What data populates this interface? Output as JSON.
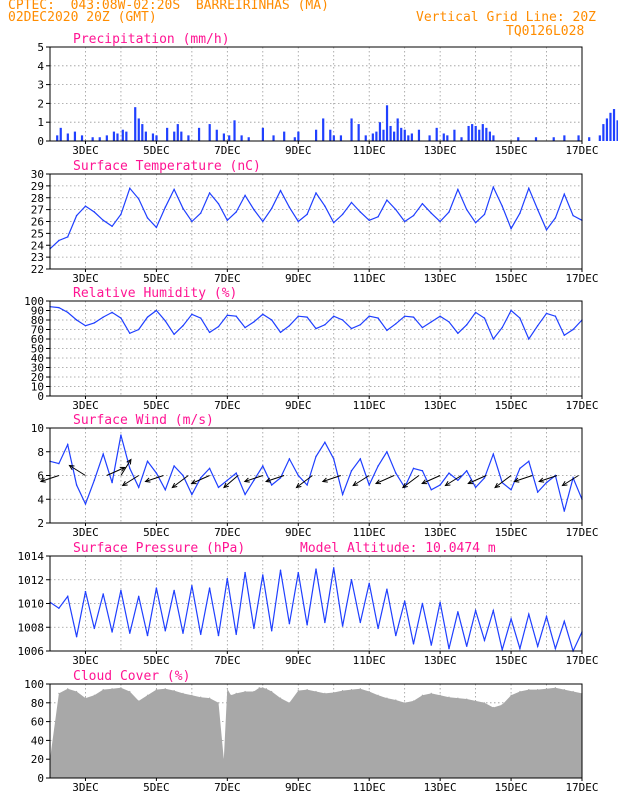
{
  "header": {
    "line1": "CPTEC:  043:08W-02:20S  BARREIRINHAS (MA)",
    "line2": "02DEC2020 20Z (GMT)",
    "right1": "Vertical Grid Line: 20Z",
    "right2": "TQ0126L028"
  },
  "colors": {
    "header": "#ff8c00",
    "title": "#ff1493",
    "line": "#1f3fff",
    "bars": "#2040ff",
    "cloud": "#a8a8a8"
  },
  "chart_data": [
    {
      "type": "bar",
      "title": "Precipitation (mm/h)",
      "ylim": [
        0,
        5
      ],
      "yticks": [
        0,
        1,
        2,
        3,
        4,
        5
      ],
      "x_range_days": [
        0,
        15
      ],
      "xtick_labels": [
        "3DEC",
        "5DEC",
        "7DEC",
        "9DEC",
        "11DEC",
        "13DEC",
        "15DEC",
        "17DEC"
      ],
      "series": [
        {
          "x": [
            0.2,
            0.3,
            0.5,
            0.7,
            0.9,
            1.2,
            1.4,
            1.6,
            1.8,
            1.9,
            2.05,
            2.15,
            2.4,
            2.5,
            2.6,
            2.7,
            2.9,
            3.0,
            3.3,
            3.5,
            3.6,
            3.7,
            3.9,
            4.2,
            4.5,
            4.7,
            4.9,
            5.05,
            5.2,
            5.4,
            5.6,
            6.0,
            6.3,
            6.6,
            6.9,
            7.0,
            7.5,
            7.7,
            7.9,
            8.0,
            8.2,
            8.5,
            8.7,
            8.9,
            9.1,
            9.2,
            9.3,
            9.4,
            9.5,
            9.6,
            9.7,
            9.8,
            9.9,
            10.0,
            10.1,
            10.2,
            10.4,
            10.7,
            10.9,
            11.1,
            11.2,
            11.4,
            11.6,
            11.8,
            11.9,
            12.0,
            12.1,
            12.2,
            12.3,
            12.4,
            12.5,
            13.2,
            13.7,
            14.2,
            14.5,
            14.9,
            15.2,
            15.5,
            15.6,
            15.7,
            15.8,
            15.9,
            16.0,
            16.1,
            16.2,
            16.3,
            16.4,
            16.5
          ],
          "values": [
            0.3,
            0.7,
            0.4,
            0.5,
            0.3,
            0.2,
            0.2,
            0.3,
            0.5,
            0.4,
            0.6,
            0.5,
            1.8,
            1.2,
            0.9,
            0.5,
            0.4,
            0.3,
            0.7,
            0.5,
            0.9,
            0.5,
            0.3,
            0.7,
            0.9,
            0.6,
            0.4,
            0.3,
            1.1,
            0.3,
            0.2,
            0.7,
            0.3,
            0.5,
            0.2,
            0.5,
            0.6,
            1.2,
            0.6,
            0.3,
            0.3,
            1.2,
            0.9,
            0.3,
            0.4,
            0.5,
            1.0,
            0.6,
            1.9,
            0.8,
            0.5,
            1.2,
            0.7,
            0.6,
            0.3,
            0.4,
            0.6,
            0.3,
            0.7,
            0.4,
            0.3,
            0.6,
            0.2,
            0.8,
            0.9,
            0.8,
            0.6,
            0.9,
            0.7,
            0.5,
            0.3,
            0.2,
            0.2,
            0.2,
            0.3,
            0.3,
            0.2,
            0.3,
            0.9,
            1.2,
            1.5,
            1.7,
            1.1,
            0.8,
            0.6,
            0.4,
            0.3,
            0.2
          ]
        }
      ]
    },
    {
      "type": "line",
      "title": "Surface Temperature (nC)",
      "ylim": [
        22,
        30
      ],
      "yticks": [
        22,
        23,
        24,
        25,
        26,
        27,
        28,
        29,
        30
      ],
      "x_range_days": [
        0,
        15
      ],
      "xtick_labels": [
        "3DEC",
        "5DEC",
        "7DEC",
        "9DEC",
        "11DEC",
        "13DEC",
        "15DEC",
        "17DEC"
      ],
      "series": [
        {
          "x": [
            0,
            0.25,
            0.5,
            0.75,
            1.0,
            1.25,
            1.5,
            1.75,
            2.0,
            2.25,
            2.5,
            2.75,
            3.0,
            3.25,
            3.5,
            3.75,
            4.0,
            4.25,
            4.5,
            4.75,
            5.0,
            5.25,
            5.5,
            5.75,
            6.0,
            6.25,
            6.5,
            6.75,
            7.0,
            7.25,
            7.5,
            7.75,
            8.0,
            8.25,
            8.5,
            8.75,
            9.0,
            9.25,
            9.5,
            9.75,
            10.0,
            10.25,
            10.5,
            10.75,
            11.0,
            11.25,
            11.5,
            11.75,
            12.0,
            12.25,
            12.5,
            12.75,
            13.0,
            13.25,
            13.5,
            13.75,
            14.0,
            14.25,
            14.5,
            14.75,
            15.0
          ],
          "values": [
            23.7,
            24.4,
            24.7,
            26.5,
            27.3,
            26.8,
            26.1,
            25.6,
            26.6,
            28.8,
            27.9,
            26.3,
            25.5,
            27.2,
            28.7,
            27.1,
            26.0,
            26.7,
            28.4,
            27.5,
            26.1,
            26.8,
            28.2,
            27.0,
            26.0,
            27.1,
            28.6,
            27.2,
            26.0,
            26.6,
            28.4,
            27.3,
            25.9,
            26.6,
            27.6,
            26.8,
            26.1,
            26.4,
            27.8,
            27.0,
            26.0,
            26.5,
            27.5,
            26.7,
            26.0,
            26.8,
            28.7,
            27.0,
            25.9,
            26.6,
            28.9,
            27.3,
            25.4,
            26.7,
            28.8,
            27.0,
            25.3,
            26.3,
            28.3,
            26.5,
            26.1
          ]
        }
      ]
    },
    {
      "type": "line",
      "title": "Relative Humidity (%)",
      "ylim": [
        0,
        100
      ],
      "yticks": [
        0,
        10,
        20,
        30,
        40,
        50,
        60,
        70,
        80,
        90,
        100
      ],
      "x_range_days": [
        0,
        15
      ],
      "xtick_labels": [
        "3DEC",
        "5DEC",
        "7DEC",
        "9DEC",
        "11DEC",
        "13DEC",
        "15DEC",
        "17DEC"
      ],
      "series": [
        {
          "x": [
            0,
            0.25,
            0.5,
            0.75,
            1.0,
            1.25,
            1.5,
            1.75,
            2.0,
            2.25,
            2.5,
            2.75,
            3.0,
            3.25,
            3.5,
            3.75,
            4.0,
            4.25,
            4.5,
            4.75,
            5.0,
            5.25,
            5.5,
            5.75,
            6.0,
            6.25,
            6.5,
            6.75,
            7.0,
            7.25,
            7.5,
            7.75,
            8.0,
            8.25,
            8.5,
            8.75,
            9.0,
            9.25,
            9.5,
            9.75,
            10.0,
            10.25,
            10.5,
            10.75,
            11.0,
            11.25,
            11.5,
            11.75,
            12.0,
            12.25,
            12.5,
            12.75,
            13.0,
            13.25,
            13.5,
            13.75,
            14.0,
            14.25,
            14.5,
            14.75,
            15.0
          ],
          "values": [
            94,
            93,
            88,
            80,
            74,
            77,
            83,
            88,
            82,
            66,
            70,
            83,
            90,
            79,
            65,
            74,
            86,
            82,
            67,
            73,
            85,
            84,
            72,
            78,
            86,
            80,
            67,
            74,
            84,
            83,
            71,
            75,
            84,
            80,
            71,
            75,
            84,
            82,
            69,
            76,
            84,
            83,
            72,
            78,
            84,
            78,
            66,
            75,
            88,
            82,
            60,
            72,
            90,
            82,
            60,
            74,
            87,
            84,
            64,
            70,
            80
          ]
        }
      ]
    },
    {
      "type": "line",
      "title": "Surface Wind (m/s)",
      "ylim": [
        2,
        10
      ],
      "yticks": [
        2,
        4,
        6,
        8,
        10
      ],
      "x_range_days": [
        0,
        15
      ],
      "xtick_labels": [
        "3DEC",
        "5DEC",
        "7DEC",
        "9DEC",
        "11DEC",
        "13DEC",
        "15DEC",
        "17DEC"
      ],
      "series": [
        {
          "x": [
            0,
            0.25,
            0.5,
            0.75,
            1.0,
            1.25,
            1.5,
            1.75,
            2.0,
            2.25,
            2.5,
            2.75,
            3.0,
            3.25,
            3.5,
            3.75,
            4.0,
            4.25,
            4.5,
            4.75,
            5.0,
            5.25,
            5.5,
            5.75,
            6.0,
            6.25,
            6.5,
            6.75,
            7.0,
            7.25,
            7.5,
            7.75,
            8.0,
            8.25,
            8.5,
            8.75,
            9.0,
            9.25,
            9.5,
            9.75,
            10.0,
            10.25,
            10.5,
            10.75,
            11.0,
            11.25,
            11.5,
            11.75,
            12.0,
            12.25,
            12.5,
            12.75,
            13.0,
            13.25,
            13.5,
            13.75,
            14.0,
            14.25,
            14.5,
            14.75,
            15.0
          ],
          "values": [
            7.2,
            7.0,
            8.6,
            5.2,
            3.6,
            5.6,
            7.8,
            5.4,
            9.4,
            6.6,
            5.0,
            7.2,
            6.2,
            4.8,
            6.8,
            6.0,
            4.4,
            5.8,
            6.6,
            5.0,
            5.6,
            6.2,
            4.4,
            5.6,
            6.8,
            5.2,
            5.8,
            7.4,
            6.0,
            5.2,
            7.6,
            8.8,
            7.4,
            4.4,
            6.4,
            7.4,
            5.2,
            6.8,
            8.0,
            6.2,
            5.0,
            6.6,
            6.4,
            4.8,
            5.2,
            6.2,
            5.6,
            6.4,
            5.0,
            5.8,
            7.8,
            5.4,
            4.8,
            6.6,
            7.2,
            4.6,
            5.4,
            6.0,
            3.0,
            5.8,
            4.0
          ]
        }
      ],
      "arrows": [
        {
          "x": 0.25,
          "u": -0.9,
          "v": -0.3
        },
        {
          "x": 1.0,
          "u": -0.8,
          "v": 0.5
        },
        {
          "x": 1.6,
          "u": 0.9,
          "v": 0.4
        },
        {
          "x": 2.0,
          "u": 0.5,
          "v": 0.8
        },
        {
          "x": 2.5,
          "u": -0.8,
          "v": -0.5
        },
        {
          "x": 3.2,
          "u": -0.9,
          "v": -0.3
        },
        {
          "x": 3.9,
          "u": -0.8,
          "v": -0.6
        },
        {
          "x": 4.5,
          "u": -0.9,
          "v": -0.4
        },
        {
          "x": 5.3,
          "u": -0.7,
          "v": -0.6
        },
        {
          "x": 6.0,
          "u": -0.9,
          "v": -0.3
        },
        {
          "x": 6.6,
          "u": -0.9,
          "v": -0.3
        },
        {
          "x": 7.4,
          "u": -0.8,
          "v": -0.6
        },
        {
          "x": 8.2,
          "u": -0.9,
          "v": -0.3
        },
        {
          "x": 9.0,
          "u": -0.8,
          "v": -0.5
        },
        {
          "x": 9.7,
          "u": -0.9,
          "v": -0.4
        },
        {
          "x": 10.4,
          "u": -0.8,
          "v": -0.6
        },
        {
          "x": 11.0,
          "u": -0.9,
          "v": -0.4
        },
        {
          "x": 11.6,
          "u": -0.8,
          "v": -0.5
        },
        {
          "x": 12.3,
          "u": -0.9,
          "v": -0.4
        },
        {
          "x": 13.0,
          "u": -0.8,
          "v": -0.6
        },
        {
          "x": 13.6,
          "u": -0.9,
          "v": -0.3
        },
        {
          "x": 14.3,
          "u": -0.9,
          "v": -0.3
        },
        {
          "x": 14.9,
          "u": -0.8,
          "v": -0.5
        }
      ]
    },
    {
      "type": "line",
      "title": "Surface Pressure (hPa)",
      "subtitle": "Model Altitude: 10.0474 m",
      "ylim": [
        1006,
        1014
      ],
      "yticks": [
        1006,
        1008,
        1010,
        1012,
        1014
      ],
      "x_range_days": [
        0,
        15
      ],
      "xtick_labels": [
        "3DEC",
        "5DEC",
        "7DEC",
        "9DEC",
        "11DEC",
        "13DEC",
        "15DEC",
        "17DEC"
      ],
      "series": [
        {
          "x": [
            0,
            0.25,
            0.5,
            0.75,
            1.0,
            1.25,
            1.5,
            1.75,
            2.0,
            2.25,
            2.5,
            2.75,
            3.0,
            3.25,
            3.5,
            3.75,
            4.0,
            4.25,
            4.5,
            4.75,
            5.0,
            5.25,
            5.5,
            5.75,
            6.0,
            6.25,
            6.5,
            6.75,
            7.0,
            7.25,
            7.5,
            7.75,
            8.0,
            8.25,
            8.5,
            8.75,
            9.0,
            9.25,
            9.5,
            9.75,
            10.0,
            10.25,
            10.5,
            10.75,
            11.0,
            11.25,
            11.5,
            11.75,
            12.0,
            12.25,
            12.5,
            12.75,
            13.0,
            13.25,
            13.5,
            13.75,
            14.0,
            14.25,
            14.5,
            14.75,
            15.0
          ],
          "values": [
            1010.1,
            1009.6,
            1010.6,
            1007.2,
            1011.0,
            1007.9,
            1010.8,
            1007.6,
            1011.1,
            1007.5,
            1010.6,
            1007.3,
            1011.3,
            1007.7,
            1011.1,
            1007.5,
            1011.5,
            1007.4,
            1011.3,
            1007.3,
            1012.1,
            1007.4,
            1012.6,
            1007.9,
            1012.4,
            1007.7,
            1012.8,
            1008.3,
            1012.6,
            1008.2,
            1012.9,
            1008.4,
            1013.0,
            1008.1,
            1012.0,
            1008.4,
            1011.7,
            1007.9,
            1011.2,
            1007.3,
            1010.2,
            1006.6,
            1010.0,
            1006.5,
            1010.1,
            1006.2,
            1009.3,
            1006.4,
            1009.4,
            1006.9,
            1009.4,
            1006.1,
            1008.7,
            1006.2,
            1009.1,
            1006.4,
            1008.9,
            1006.2,
            1008.5,
            1006.0,
            1007.6
          ]
        }
      ]
    },
    {
      "type": "area",
      "title": "Cloud Cover (%)",
      "ylim": [
        0,
        100
      ],
      "yticks": [
        0,
        20,
        40,
        60,
        80,
        100
      ],
      "x_range_days": [
        0,
        15
      ],
      "xtick_labels": [
        "3DEC",
        "5DEC",
        "7DEC",
        "9DEC",
        "11DEC",
        "13DEC",
        "15DEC",
        "17DEC"
      ],
      "series": [
        {
          "x": [
            0,
            0.25,
            0.5,
            0.75,
            1.0,
            1.25,
            1.5,
            1.75,
            2.0,
            2.25,
            2.5,
            2.75,
            3.0,
            3.25,
            3.5,
            3.75,
            4.0,
            4.25,
            4.5,
            4.75,
            4.9,
            5.0,
            5.1,
            5.25,
            5.5,
            5.75,
            5.9,
            6.0,
            6.1,
            6.25,
            6.5,
            6.75,
            7.0,
            7.25,
            7.5,
            7.75,
            8.0,
            8.25,
            8.5,
            8.75,
            9.0,
            9.25,
            9.5,
            9.75,
            10.0,
            10.25,
            10.5,
            10.75,
            11.0,
            11.25,
            11.5,
            11.75,
            12.0,
            12.25,
            12.5,
            12.75,
            13.0,
            13.25,
            13.5,
            13.75,
            14.0,
            14.25,
            14.5,
            14.75,
            15.0
          ],
          "values": [
            20,
            90,
            95,
            92,
            85,
            88,
            94,
            95,
            96,
            92,
            82,
            88,
            94,
            95,
            93,
            90,
            88,
            86,
            85,
            80,
            20,
            95,
            88,
            90,
            92,
            92,
            96,
            96,
            95,
            92,
            85,
            80,
            93,
            94,
            92,
            90,
            91,
            93,
            94,
            95,
            92,
            88,
            85,
            83,
            80,
            82,
            88,
            90,
            88,
            86,
            85,
            84,
            82,
            80,
            75,
            78,
            88,
            92,
            94,
            94,
            95,
            96,
            94,
            92,
            90
          ]
        }
      ]
    }
  ]
}
